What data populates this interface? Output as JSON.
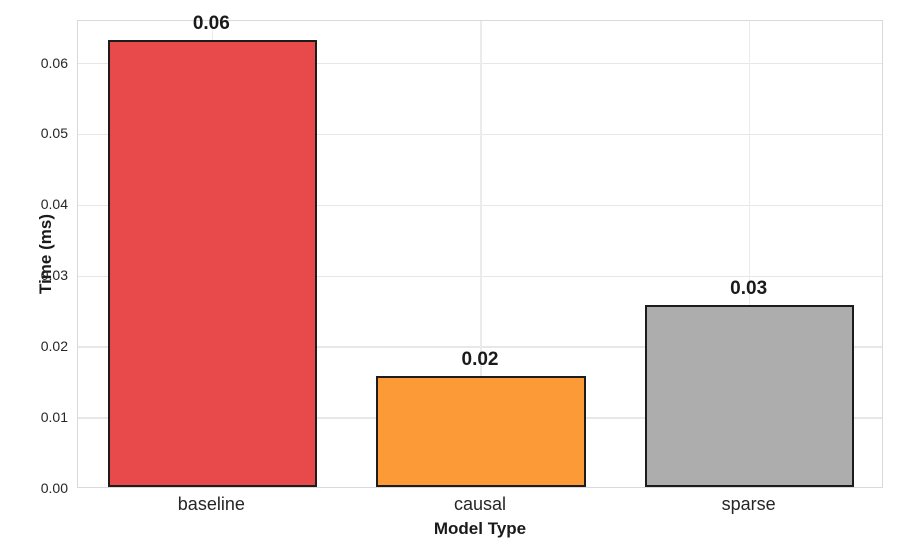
{
  "chart_data": {
    "type": "bar",
    "title": "",
    "xlabel": "Model Type",
    "ylabel": "Time (ms)",
    "categories": [
      "baseline",
      "causal",
      "sparse"
    ],
    "values": [
      0.063,
      0.0157,
      0.0256
    ],
    "value_labels": [
      "0.06",
      "0.02",
      "0.03"
    ],
    "bar_colors": [
      "#e8494b",
      "#fd9a38",
      "#adadad"
    ],
    "bar_edge_color": "#1c1c1c",
    "ylim": [
      0,
      0.066
    ],
    "yticks": [
      0.0,
      0.01,
      0.02,
      0.03,
      0.04,
      0.05,
      0.06
    ],
    "ytick_labels": [
      "0.00",
      "0.01",
      "0.02",
      "0.03",
      "0.04",
      "0.05",
      "0.06"
    ],
    "grid": true,
    "grid_color": "#e7e7e7",
    "spine_color": "#d9d9d9",
    "legend_position": "none",
    "background_color": "#ffffff"
  }
}
